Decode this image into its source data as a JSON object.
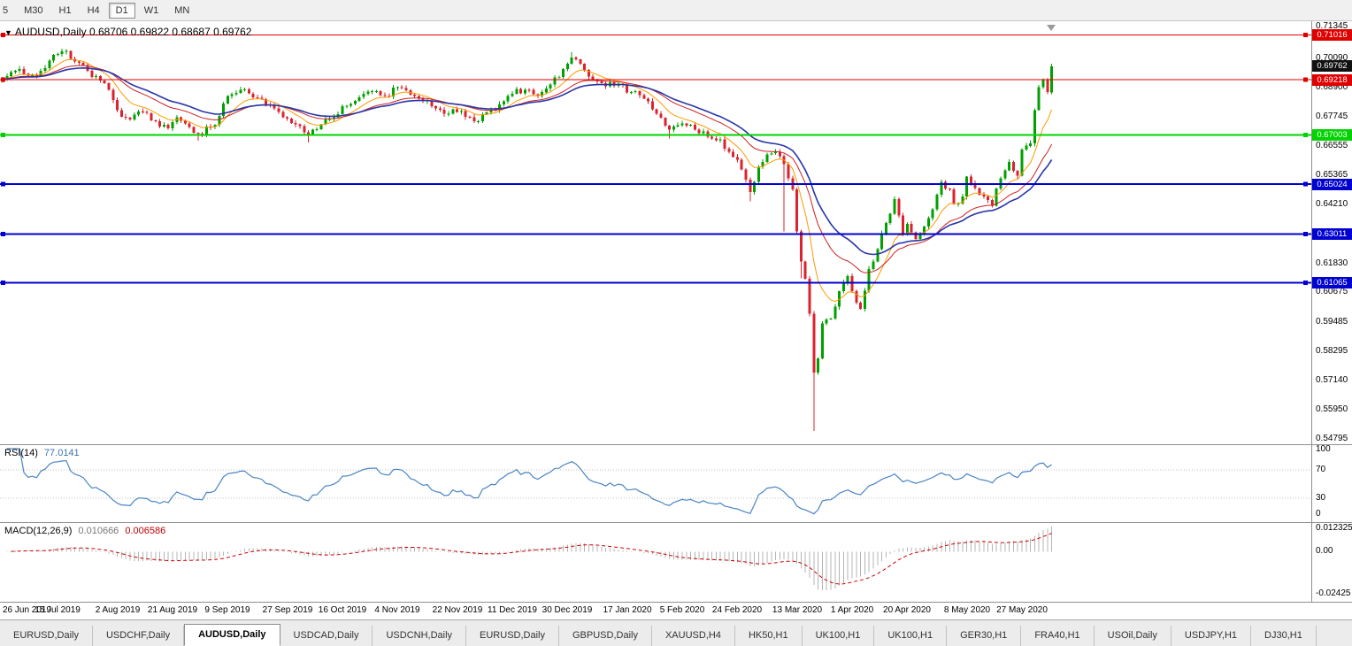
{
  "toolbar": {
    "timeframes": [
      {
        "label": "5",
        "active": false
      },
      {
        "label": "M30",
        "active": false
      },
      {
        "label": "H1",
        "active": false
      },
      {
        "label": "H4",
        "active": false
      },
      {
        "label": "D1",
        "active": true
      },
      {
        "label": "W1",
        "active": false
      },
      {
        "label": "MN",
        "active": false
      }
    ]
  },
  "chart": {
    "symbol_label": "AUDUSD,Daily",
    "dropdown_glyph": "▼"
  },
  "price_axis": {
    "labels": [
      "0.71345",
      "0.70090",
      "0.68900",
      "0.67745",
      "0.66555",
      "0.65365",
      "0.64210",
      "0.63020",
      "0.61830",
      "0.60675",
      "0.59485",
      "0.58295",
      "0.57140",
      "0.55950",
      "0.54795"
    ],
    "current_box": {
      "text": "0.69762",
      "bg": "#111111"
    }
  },
  "indicators": {
    "rsi": {
      "name": "RSI(14)",
      "value": "77.0141",
      "axis_labels": [
        "100",
        "70",
        "30",
        "0"
      ],
      "levels": [
        70,
        30
      ],
      "color": "#4a84c4"
    },
    "macd": {
      "name": "MACD(12,26,9)",
      "main_value": "0.010666",
      "signal_value": "0.006586",
      "axis_labels": [
        "0.012325",
        "0.00",
        "-0.02425"
      ],
      "scale_max": 0.012325,
      "scale_min": -0.02425,
      "hist_color": "#b4b4b4",
      "signal_color": "#cc0000"
    }
  },
  "tabs": [
    {
      "label": "EURUSD,Daily",
      "active": false
    },
    {
      "label": "USDCHF,Daily",
      "active": false
    },
    {
      "label": "AUDUSD,Daily",
      "active": true
    },
    {
      "label": "USDCAD,Daily",
      "active": false
    },
    {
      "label": "USDCNH,Daily",
      "active": false
    },
    {
      "label": "EURUSD,Daily",
      "active": false
    },
    {
      "label": "GBPUSD,Daily",
      "active": false
    },
    {
      "label": "XAUUSD,H4",
      "active": false
    },
    {
      "label": "HK50,H1",
      "active": false
    },
    {
      "label": "UK100,H1",
      "active": false
    },
    {
      "label": "UK100,H1",
      "active": false
    },
    {
      "label": "GER30,H1",
      "active": false
    },
    {
      "label": "FRA40,H1",
      "active": false
    },
    {
      "label": "USOil,Daily",
      "active": false
    },
    {
      "label": "USDJPY,H1",
      "active": false
    },
    {
      "label": "DJ30,H1",
      "active": false
    }
  ],
  "chart_data": {
    "type": "candlestick",
    "symbol": "AUDUSD",
    "timeframe": "Daily",
    "last_candle": {
      "open": "0.68706",
      "high": "0.69822",
      "low": "0.68687",
      "close": "0.69762"
    },
    "n_candles": 248,
    "x_step": 4.8,
    "x0": 3,
    "price_scale": {
      "max": 0.7157,
      "min": 0.5457
    },
    "colors": {
      "up": "#00A000",
      "down": "#D9232E",
      "ma_fast": "#FF9900",
      "ma_mid": "#CC2222",
      "ma_slow": "#2936A8"
    },
    "ma_periods": {
      "fast": 9,
      "mid": 21,
      "slow": 30
    },
    "noise_amp": 0.0014,
    "first_open": 0.6915,
    "close_anchors": [
      [
        0,
        0.6925
      ],
      [
        4,
        0.6965
      ],
      [
        8,
        0.6938
      ],
      [
        13,
        0.7025
      ],
      [
        15,
        0.7038
      ],
      [
        17,
        0.6995
      ],
      [
        20,
        0.6958
      ],
      [
        24,
        0.6908
      ],
      [
        27,
        0.68
      ],
      [
        30,
        0.6762
      ],
      [
        33,
        0.6792
      ],
      [
        36,
        0.6756
      ],
      [
        39,
        0.6726
      ],
      [
        41,
        0.6772
      ],
      [
        43,
        0.6746
      ],
      [
        46,
        0.6706
      ],
      [
        49,
        0.6732
      ],
      [
        51,
        0.6776
      ],
      [
        53,
        0.6856
      ],
      [
        56,
        0.6882
      ],
      [
        59,
        0.6852
      ],
      [
        62,
        0.6822
      ],
      [
        65,
        0.6792
      ],
      [
        67,
        0.6766
      ],
      [
        70,
        0.6736
      ],
      [
        72,
        0.67
      ],
      [
        75,
        0.6742
      ],
      [
        78,
        0.6772
      ],
      [
        80,
        0.6816
      ],
      [
        84,
        0.6852
      ],
      [
        87,
        0.6876
      ],
      [
        90,
        0.6856
      ],
      [
        93,
        0.6892
      ],
      [
        96,
        0.6862
      ],
      [
        99,
        0.6836
      ],
      [
        102,
        0.6806
      ],
      [
        105,
        0.6786
      ],
      [
        107,
        0.6792
      ],
      [
        110,
        0.6772
      ],
      [
        112,
        0.6756
      ],
      [
        115,
        0.6802
      ],
      [
        118,
        0.6836
      ],
      [
        120,
        0.6866
      ],
      [
        123,
        0.6882
      ],
      [
        126,
        0.6856
      ],
      [
        129,
        0.6902
      ],
      [
        133,
        0.6986
      ],
      [
        134,
        0.7012
      ],
      [
        136,
        0.6986
      ],
      [
        139,
        0.6922
      ],
      [
        142,
        0.6896
      ],
      [
        145,
        0.6906
      ],
      [
        148,
        0.6872
      ],
      [
        151,
        0.6846
      ],
      [
        154,
        0.6786
      ],
      [
        157,
        0.6722
      ],
      [
        160,
        0.6746
      ],
      [
        163,
        0.6722
      ],
      [
        166,
        0.6692
      ],
      [
        169,
        0.6682
      ],
      [
        171,
        0.6632
      ],
      [
        173,
        0.66
      ],
      [
        175,
        0.652
      ],
      [
        176,
        0.647
      ],
      [
        178,
        0.6572
      ],
      [
        180,
        0.6622
      ],
      [
        182,
        0.6632
      ],
      [
        184,
        0.6582
      ],
      [
        186,
        0.6482
      ],
      [
        187,
        0.6312
      ],
      [
        188,
        0.6192
      ],
      [
        189,
        0.6122
      ],
      [
        190,
        0.5982
      ],
      [
        191,
        0.5745
      ],
      [
        192,
        0.5802
      ],
      [
        193,
        0.5942
      ],
      [
        195,
        0.5962
      ],
      [
        197,
        0.6072
      ],
      [
        199,
        0.6132
      ],
      [
        200,
        0.6072
      ],
      [
        202,
        0.6002
      ],
      [
        204,
        0.6162
      ],
      [
        206,
        0.6242
      ],
      [
        208,
        0.6346
      ],
      [
        210,
        0.6442
      ],
      [
        212,
        0.6302
      ],
      [
        213,
        0.6342
      ],
      [
        215,
        0.6282
      ],
      [
        217,
        0.6332
      ],
      [
        219,
        0.6402
      ],
      [
        221,
        0.6512
      ],
      [
        223,
        0.6482
      ],
      [
        224,
        0.6422
      ],
      [
        226,
        0.6452
      ],
      [
        227,
        0.6532
      ],
      [
        229,
        0.6486
      ],
      [
        231,
        0.6452
      ],
      [
        233,
        0.6416
      ],
      [
        235,
        0.6526
      ],
      [
        237,
        0.6592
      ],
      [
        239,
        0.6536
      ],
      [
        240,
        0.6642
      ],
      [
        242,
        0.6666
      ],
      [
        243,
        0.68
      ],
      [
        244,
        0.6892
      ],
      [
        245,
        0.6922
      ],
      [
        246,
        0.6872
      ],
      [
        247,
        0.69762
      ]
    ],
    "wick_overrides": {
      "15": {
        "h": 0.7045
      },
      "46": {
        "l": 0.6677
      },
      "72": {
        "l": 0.667
      },
      "134": {
        "h": 0.7032
      },
      "157": {
        "l": 0.6685
      },
      "176": {
        "l": 0.6434
      },
      "184": {
        "l": 0.6313
      },
      "188": {
        "l": 0.6123
      },
      "191": {
        "l": 0.551
      },
      "247": {
        "h": 0.69822,
        "l": 0.68687
      }
    },
    "open_overrides": {
      "247": 0.68706
    },
    "hlines": [
      {
        "price": 0.71016,
        "label": "0.71016",
        "color": "#e00000",
        "width": 1
      },
      {
        "price": 0.69218,
        "label": "0.69218",
        "color": "#e00000",
        "width": 1
      },
      {
        "price": 0.67003,
        "label": "0.67003",
        "color": "#00d300",
        "width": 2
      },
      {
        "price": 0.65024,
        "label": "0.65024",
        "color": "#0000d0",
        "width": 2
      },
      {
        "price": 0.63011,
        "label": "0.63011",
        "color": "#0000d0",
        "width": 2
      },
      {
        "price": 0.61065,
        "label": "0.61065",
        "color": "#0000d0",
        "width": 2
      }
    ],
    "x_ticks": [
      [
        0,
        "26 Jun 2019"
      ],
      [
        13,
        "15 Jul 2019"
      ],
      [
        27,
        "2 Aug 2019"
      ],
      [
        40,
        "21 Aug 2019"
      ],
      [
        53,
        "9 Sep 2019"
      ],
      [
        67,
        "27 Sep 2019"
      ],
      [
        80,
        "16 Oct 2019"
      ],
      [
        93,
        "4 Nov 2019"
      ],
      [
        107,
        "22 Nov 2019"
      ],
      [
        120,
        "11 Dec 2019"
      ],
      [
        133,
        "30 Dec 2019"
      ],
      [
        147,
        "17 Jan 2020"
      ],
      [
        160,
        "5 Feb 2020"
      ],
      [
        173,
        "24 Feb 2020"
      ],
      [
        187,
        "13 Mar 2020"
      ],
      [
        200,
        "1 Apr 2020"
      ],
      [
        213,
        "20 Apr 2020"
      ],
      [
        227,
        "8 May 2020"
      ],
      [
        240,
        "27 May 2020"
      ]
    ]
  }
}
